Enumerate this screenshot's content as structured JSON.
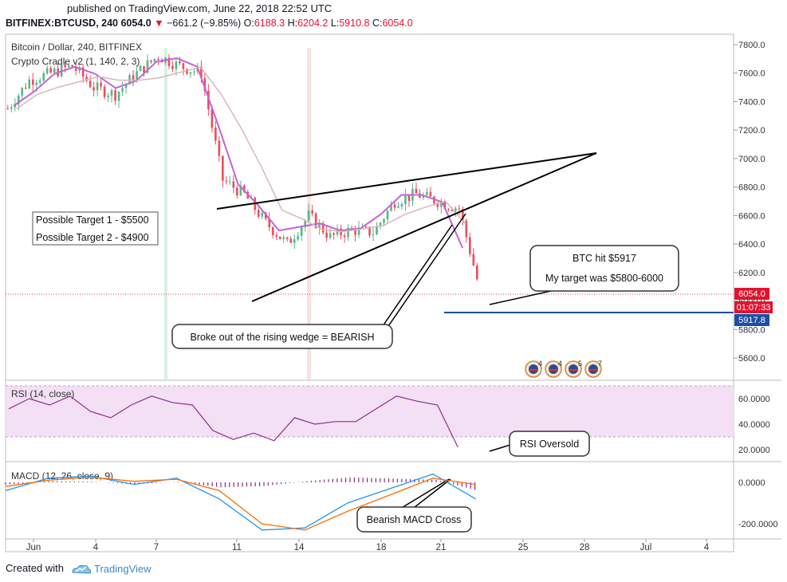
{
  "header": {
    "published": "published on TradingView.com, June 22, 2018 22:52 UTC",
    "symbol": "BITFINEX:BTCUSD, 240",
    "last": "6054.0",
    "change_arrow": "▼",
    "change": "−661.2 (−9.85%)",
    "o_label": "O:",
    "o": "6188.3",
    "h_label": "H:",
    "h": "6204.2",
    "l_label": "L:",
    "l": "5910.8",
    "c_label": "C:",
    "c": "6054.0"
  },
  "footer": {
    "created_with": "Created with",
    "brand": "TradingView",
    "logo_icon": "tradingview-cloud-icon"
  },
  "colors": {
    "up": "#53b987",
    "down": "#eb4d5c",
    "ma": "#c564d6",
    "rsi": "#8f2e8c",
    "macd": "#2196f3",
    "signal": "#ff6d00",
    "hist": "#8c2c86",
    "support": "#1d4ea5"
  },
  "annotations": {
    "targets": [
      "Possible Target 1 - $5500",
      "Possible Target 2 - $4900"
    ],
    "btc_hit": "BTC hit $5917",
    "my_target": "My target was $5800-6000",
    "wedge": "Broke out of the rising wedge = BEARISH",
    "rsi_oversold": "RSI Oversold",
    "macd_cross": "Bearish MACD Cross"
  },
  "events": [
    "4",
    "4",
    "5",
    "7"
  ],
  "chart_data": [
    {
      "type": "candlestick",
      "title": "Bitcoin / Dollar, 240, BITFINEX",
      "indicator": "Crypto Cradle v2 (1, 140, 2, 3)",
      "x_ticks": [
        "Jun",
        "4",
        "7",
        "11",
        "14",
        "18",
        "21",
        "25",
        "28",
        "Jul",
        "4"
      ],
      "y_ticks": [
        5600,
        5800,
        6000,
        6200,
        6400,
        6600,
        6800,
        7000,
        7200,
        7400,
        7600,
        7800
      ],
      "ylim": [
        5450,
        7830
      ],
      "price_labels": {
        "last": "6054.0",
        "countdown": "01:07:33",
        "support": "5917.8"
      },
      "support_level": 5917.8,
      "series": [
        {
          "name": "Close",
          "x": [
            "May 31",
            "Jun 1",
            "Jun 2",
            "Jun 3",
            "Jun 4",
            "Jun 5",
            "Jun 6",
            "Jun 7",
            "Jun 8",
            "Jun 9",
            "Jun 10",
            "Jun 11",
            "Jun 12",
            "Jun 13",
            "Jun 14",
            "Jun 15",
            "Jun 16",
            "Jun 17",
            "Jun 18",
            "Jun 19",
            "Jun 20",
            "Jun 21",
            "Jun 22"
          ],
          "values": [
            7350,
            7550,
            7600,
            7650,
            7500,
            7450,
            7600,
            7720,
            7650,
            7600,
            6850,
            6750,
            6550,
            6400,
            6600,
            6450,
            6500,
            6480,
            6700,
            6750,
            6700,
            6650,
            6054
          ]
        }
      ]
    },
    {
      "type": "line",
      "title": "RSI (14, close)",
      "y_ticks": [
        "60.0000",
        "40.0000",
        "20.0000"
      ],
      "ylim": [
        12,
        72
      ],
      "bands": [
        70,
        30
      ],
      "series": [
        {
          "name": "RSI",
          "x": [
            "May 31",
            "Jun 1",
            "Jun 2",
            "Jun 3",
            "Jun 4",
            "Jun 5",
            "Jun 6",
            "Jun 7",
            "Jun 8",
            "Jun 9",
            "Jun 10",
            "Jun 11",
            "Jun 12",
            "Jun 13",
            "Jun 14",
            "Jun 15",
            "Jun 16",
            "Jun 17",
            "Jun 18",
            "Jun 19",
            "Jun 20",
            "Jun 21",
            "Jun 22"
          ],
          "values": [
            52,
            60,
            55,
            62,
            50,
            45,
            55,
            62,
            57,
            55,
            35,
            28,
            33,
            27,
            45,
            40,
            42,
            42,
            52,
            62,
            58,
            55,
            22
          ]
        }
      ]
    },
    {
      "type": "line",
      "title": "MACD (12, 26, close, 9)",
      "y_ticks": [
        "0.0000",
        "-200.0000"
      ],
      "ylim": [
        -260,
        70
      ],
      "series": [
        {
          "name": "MACD",
          "x": [
            "May 31",
            "Jun 2",
            "Jun 4",
            "Jun 6",
            "Jun 8",
            "Jun 10",
            "Jun 12",
            "Jun 14",
            "Jun 16",
            "Jun 18",
            "Jun 20",
            "Jun 22"
          ],
          "values": [
            -40,
            20,
            30,
            -10,
            20,
            -80,
            -230,
            -220,
            -100,
            -30,
            40,
            -80
          ]
        },
        {
          "name": "Signal",
          "x": [
            "May 31",
            "Jun 2",
            "Jun 4",
            "Jun 6",
            "Jun 8",
            "Jun 10",
            "Jun 12",
            "Jun 14",
            "Jun 16",
            "Jun 18",
            "Jun 20",
            "Jun 22"
          ],
          "values": [
            -20,
            10,
            25,
            5,
            15,
            -40,
            -200,
            -230,
            -140,
            -60,
            20,
            -10
          ]
        }
      ]
    }
  ]
}
